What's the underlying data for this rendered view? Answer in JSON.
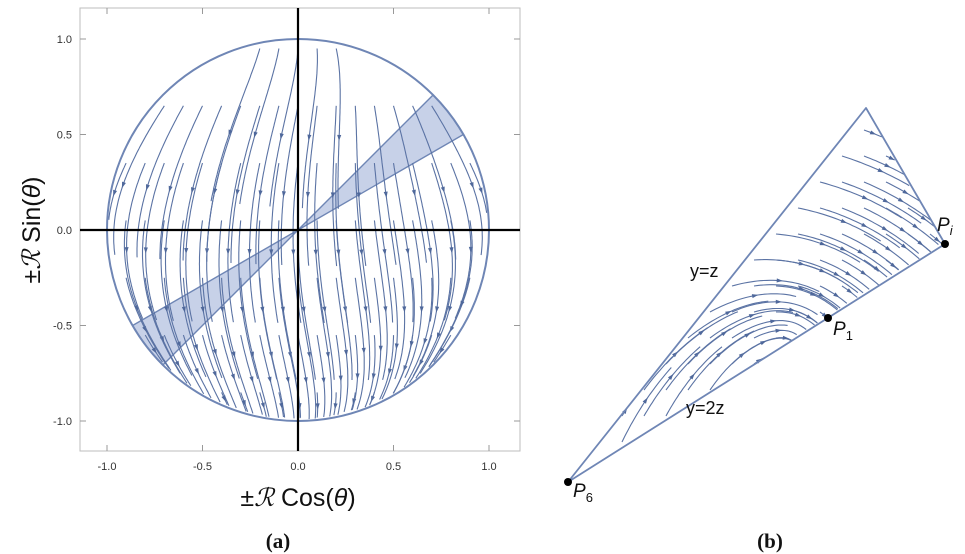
{
  "panel_a": {
    "caption": "(a)",
    "xlabel_prefix": "±",
    "xlabel_R": "ℛ",
    "xlabel_fn": " Cos(",
    "xlabel_theta": "θ",
    "xlabel_close": ")",
    "ylabel_prefix": "±",
    "ylabel_R": "ℛ",
    "ylabel_fn": " Sin(",
    "ylabel_theta": "θ",
    "ylabel_close": ")",
    "xticks": [
      "-1.0",
      "-0.5",
      "0.0",
      "0.5",
      "1.0"
    ],
    "yticks": [
      "1.0",
      "0.5",
      "0.0",
      "-0.5",
      "-1.0"
    ],
    "shaded_wedges_deg": [
      [
        30,
        45
      ],
      [
        210,
        225
      ]
    ]
  },
  "panel_b": {
    "caption": "(b)",
    "line_upper_label": "y=z",
    "line_lower_label": "y=2z",
    "points": [
      {
        "name": "P",
        "sub": "i"
      },
      {
        "name": "P",
        "sub": "1"
      },
      {
        "name": "P",
        "sub": "6"
      }
    ]
  },
  "colors": {
    "curve": "#6f86b5",
    "streamline": "#5b73a4",
    "shade": "#c7d1e8",
    "axis": "#000000",
    "frame": "#bdbdbd"
  }
}
